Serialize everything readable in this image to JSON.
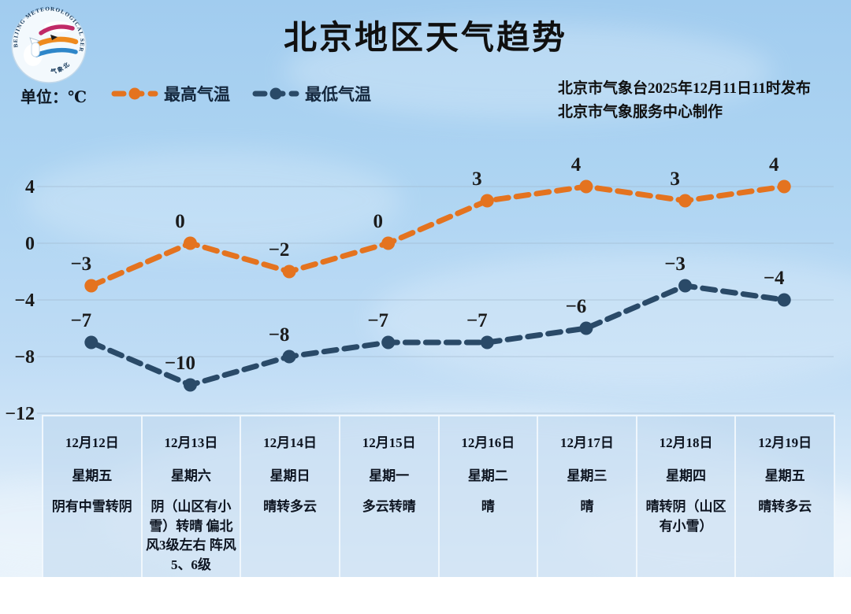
{
  "header": {
    "title": "北京地区天气趋势",
    "issued_by": "北京市气象台2025年12月11日11时发布",
    "produced_by": "北京市气象服务中心制作",
    "unit_label": "单位：℃",
    "logo": {
      "arc_text": "BEIJING METEOROLOGICAL SERVICE",
      "bottom_text": "气象北京"
    }
  },
  "legend": [
    {
      "label": "最高气温",
      "color": "#e4731f"
    },
    {
      "label": "最低气温",
      "color": "#2a4a68"
    }
  ],
  "chart_data": {
    "type": "line",
    "title": "北京地区天气趋势",
    "categories": [
      "12月12日",
      "12月13日",
      "12月14日",
      "12月15日",
      "12月16日",
      "12月17日",
      "12月18日",
      "12月19日"
    ],
    "weekdays": [
      "星期五",
      "星期六",
      "星期日",
      "星期一",
      "星期二",
      "星期三",
      "星期四",
      "星期五"
    ],
    "weather": [
      "阴有中雪转阴",
      "阴（山区有小雪）转晴 偏北风3级左右 阵风5、6级",
      "晴转多云",
      "多云转晴",
      "晴",
      "晴",
      "晴转阴（山区有小雪）",
      "晴转多云"
    ],
    "series": [
      {
        "name": "最高气温",
        "color": "#e4731f",
        "line_style": "dashed",
        "values": [
          -3,
          0,
          -2,
          0,
          3,
          4,
          3,
          4
        ]
      },
      {
        "name": "最低气温",
        "color": "#2a4a68",
        "line_style": "dashed",
        "values": [
          -7,
          -10,
          -8,
          -7,
          -7,
          -6,
          -3,
          -4
        ]
      }
    ],
    "ylabel": "℃",
    "ylim": [
      -12,
      4
    ],
    "yticks": [
      4,
      0,
      -4,
      -8,
      -12
    ],
    "grid": true,
    "legend_position": "top-left",
    "colors": {
      "grid": "#9cb2c6",
      "label": "#1b1b1b"
    }
  }
}
